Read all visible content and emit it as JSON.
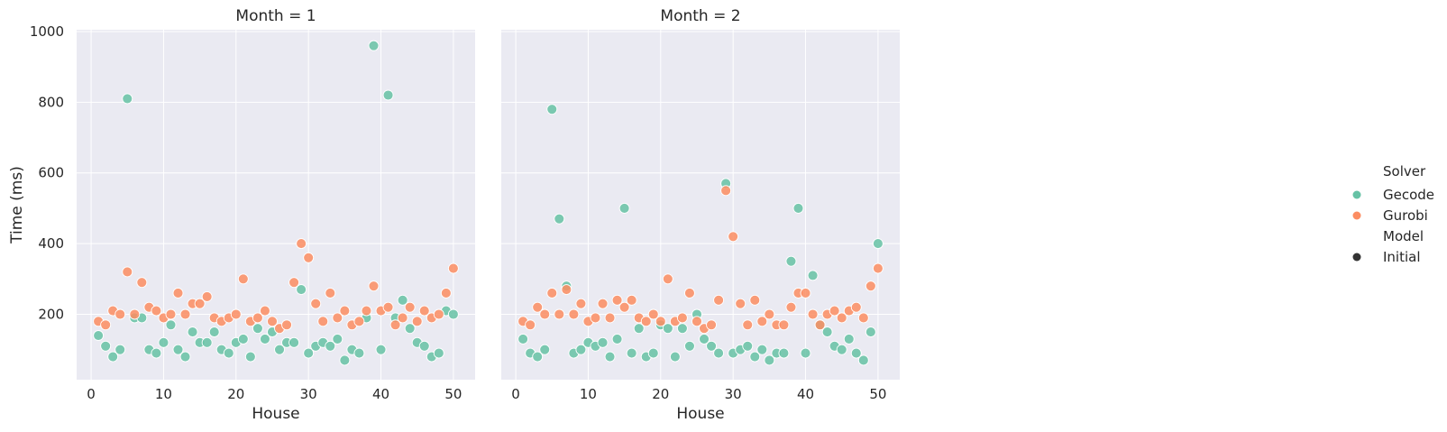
{
  "chart_data": {
    "type": "scatter",
    "ylabel": "Time (ms)",
    "xlabel": "House",
    "xlim": [
      -2,
      53
    ],
    "ylim": [
      15,
      1005
    ],
    "xticks": [
      0,
      10,
      20,
      30,
      40,
      50
    ],
    "yticks": [
      200,
      400,
      600,
      800,
      1000
    ],
    "colors": {
      "Gecode": "#66c2a5",
      "Gurobi": "#fc8d62",
      "background": "#eaeaf2"
    },
    "legend": {
      "solver_title": "Solver",
      "solvers": [
        "Gecode",
        "Gurobi"
      ],
      "model_title": "Model",
      "models": [
        "Initial"
      ]
    },
    "panels": [
      {
        "title": "Month = 1",
        "series": [
          {
            "name": "Gecode",
            "x": [
              1,
              2,
              3,
              4,
              5,
              6,
              7,
              8,
              9,
              10,
              11,
              12,
              13,
              14,
              15,
              16,
              17,
              18,
              19,
              20,
              21,
              22,
              23,
              24,
              25,
              26,
              27,
              28,
              29,
              30,
              31,
              32,
              33,
              34,
              35,
              36,
              37,
              38,
              39,
              40,
              41,
              42,
              43,
              44,
              45,
              46,
              47,
              48,
              49,
              50
            ],
            "y": [
              140,
              110,
              80,
              100,
              810,
              190,
              190,
              100,
              90,
              120,
              170,
              100,
              80,
              150,
              120,
              120,
              150,
              100,
              90,
              120,
              130,
              80,
              160,
              130,
              150,
              100,
              120,
              120,
              270,
              90,
              110,
              120,
              110,
              130,
              70,
              100,
              90,
              190,
              960,
              100,
              820,
              190,
              240,
              160,
              120,
              110,
              80,
              90,
              210,
              200
            ]
          },
          {
            "name": "Gurobi",
            "x": [
              1,
              2,
              3,
              4,
              5,
              6,
              7,
              8,
              9,
              10,
              11,
              12,
              13,
              14,
              15,
              16,
              17,
              18,
              19,
              20,
              21,
              22,
              23,
              24,
              25,
              26,
              27,
              28,
              29,
              30,
              31,
              32,
              33,
              34,
              35,
              36,
              37,
              38,
              39,
              40,
              41,
              42,
              43,
              44,
              45,
              46,
              47,
              48,
              49,
              50
            ],
            "y": [
              180,
              170,
              210,
              200,
              320,
              200,
              290,
              220,
              210,
              190,
              200,
              260,
              200,
              230,
              230,
              250,
              190,
              180,
              190,
              200,
              300,
              180,
              190,
              210,
              180,
              160,
              170,
              290,
              400,
              360,
              230,
              180,
              260,
              190,
              210,
              170,
              180,
              210,
              280,
              210,
              220,
              170,
              190,
              220,
              180,
              210,
              190,
              200,
              260,
              330
            ]
          }
        ]
      },
      {
        "title": "Month = 2",
        "series": [
          {
            "name": "Gecode",
            "x": [
              1,
              2,
              3,
              4,
              5,
              6,
              7,
              8,
              9,
              10,
              11,
              12,
              13,
              14,
              15,
              16,
              17,
              18,
              19,
              20,
              21,
              22,
              23,
              24,
              25,
              26,
              27,
              28,
              29,
              30,
              31,
              32,
              33,
              34,
              35,
              36,
              37,
              38,
              39,
              40,
              41,
              42,
              43,
              44,
              45,
              46,
              47,
              48,
              49,
              50
            ],
            "y": [
              130,
              90,
              80,
              100,
              780,
              470,
              280,
              90,
              100,
              120,
              110,
              120,
              80,
              130,
              500,
              90,
              160,
              80,
              90,
              170,
              160,
              80,
              160,
              110,
              200,
              130,
              110,
              90,
              570,
              90,
              100,
              110,
              80,
              100,
              70,
              90,
              90,
              350,
              500,
              90,
              310,
              170,
              150,
              110,
              100,
              130,
              90,
              70,
              150,
              400
            ]
          },
          {
            "name": "Gurobi",
            "x": [
              1,
              2,
              3,
              4,
              5,
              6,
              7,
              8,
              9,
              10,
              11,
              12,
              13,
              14,
              15,
              16,
              17,
              18,
              19,
              20,
              21,
              22,
              23,
              24,
              25,
              26,
              27,
              28,
              29,
              30,
              31,
              32,
              33,
              34,
              35,
              36,
              37,
              38,
              39,
              40,
              41,
              42,
              43,
              44,
              45,
              46,
              47,
              48,
              49,
              50
            ],
            "y": [
              180,
              170,
              220,
              200,
              260,
              200,
              270,
              200,
              230,
              180,
              190,
              230,
              190,
              240,
              220,
              240,
              190,
              180,
              200,
              180,
              300,
              180,
              190,
              260,
              180,
              160,
              170,
              240,
              550,
              420,
              230,
              170,
              240,
              180,
              200,
              170,
              170,
              220,
              260,
              260,
              200,
              170,
              200,
              210,
              190,
              210,
              220,
              190,
              280,
              330
            ]
          }
        ]
      }
    ]
  }
}
